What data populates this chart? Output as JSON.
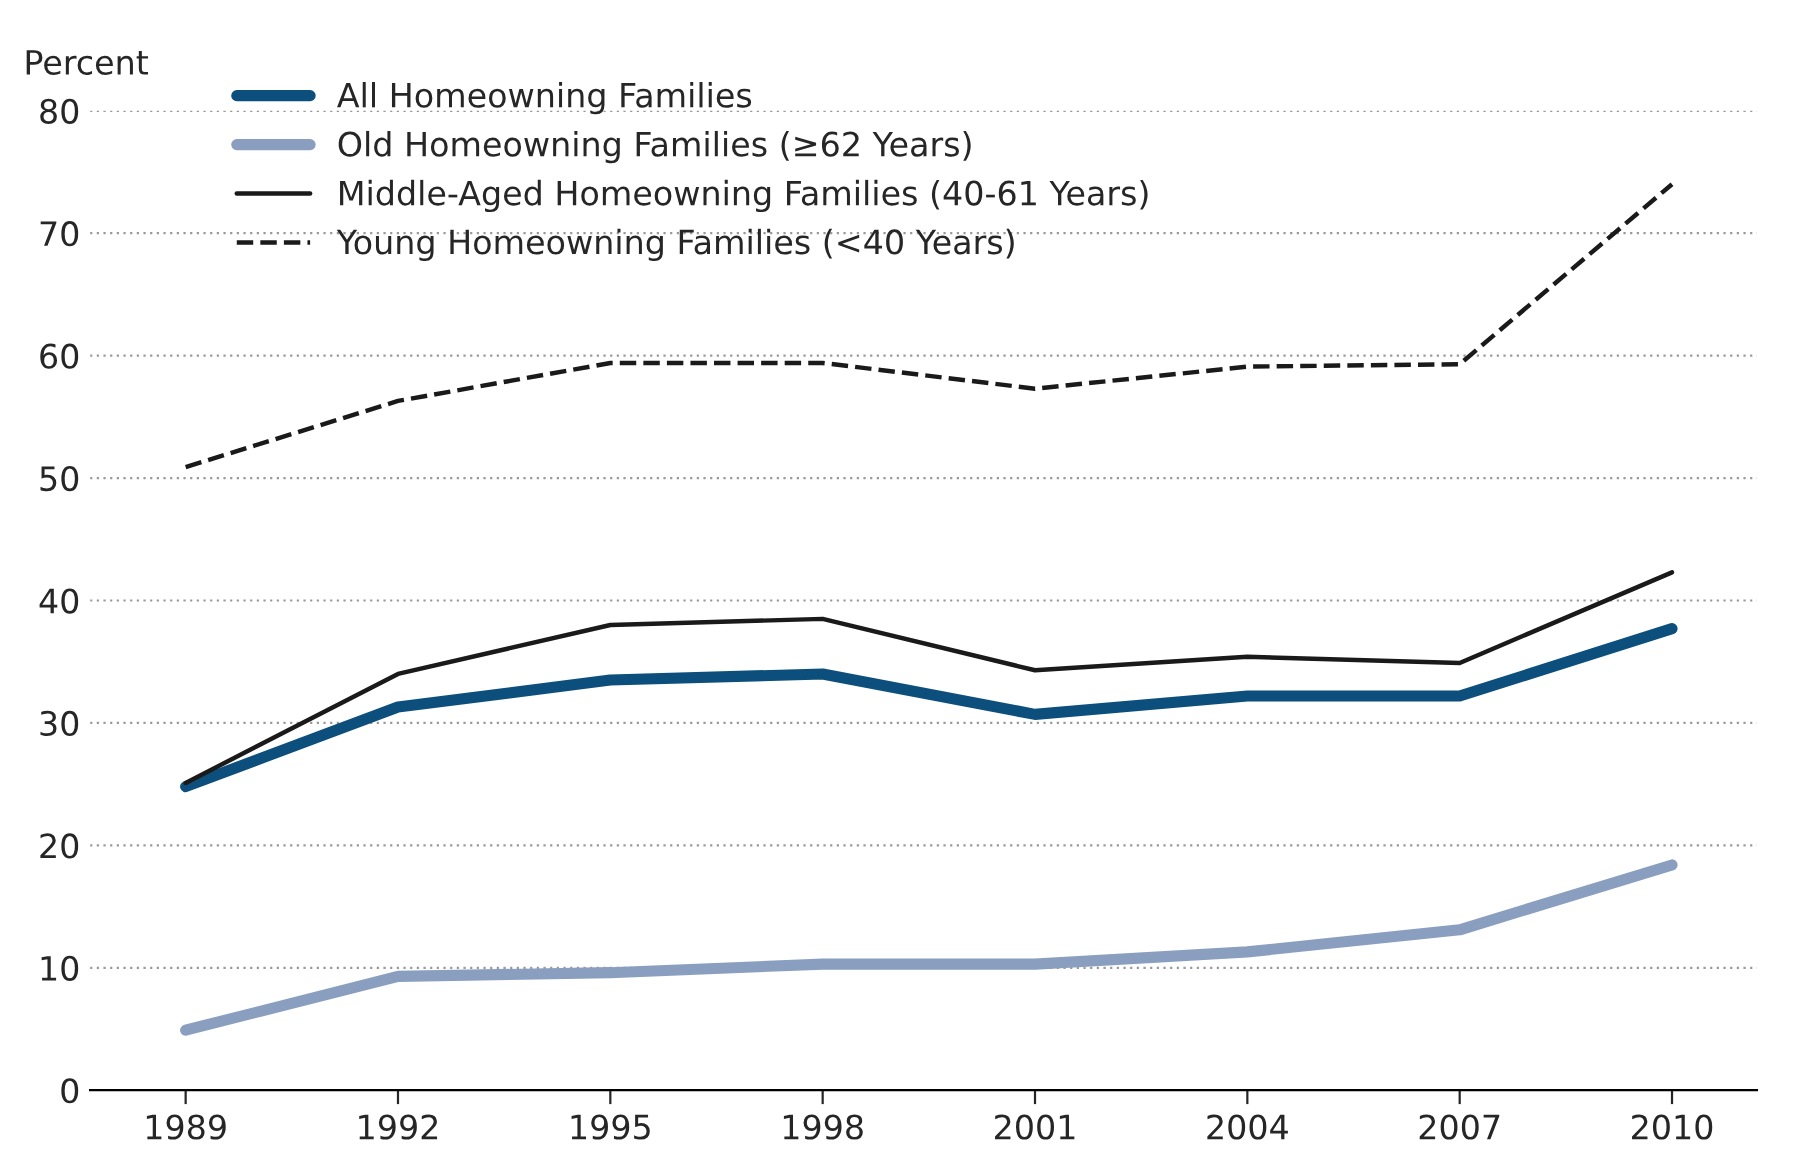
{
  "chart_data": {
    "type": "line",
    "ylabel": "Percent",
    "categories": [
      "1989",
      "1992",
      "1995",
      "1998",
      "2001",
      "2004",
      "2007",
      "2010"
    ],
    "series": [
      {
        "name": "All Homeowning Families",
        "color": "#0d4f7c",
        "values": [
          24.8,
          31.3,
          33.5,
          34.0,
          30.7,
          32.2,
          32.2,
          37.7
        ]
      },
      {
        "name": "Old Homeowning Families (≥62 Years)",
        "color": "#8a9fc0",
        "values": [
          4.9,
          9.3,
          9.6,
          10.3,
          10.3,
          11.3,
          13.1,
          18.4
        ]
      },
      {
        "name": "Middle-Aged Homeowning Families (40-61 Years)",
        "color": "#1a1a1a",
        "values": [
          25.1,
          34.0,
          38.0,
          38.5,
          34.3,
          35.4,
          34.9,
          42.3
        ]
      },
      {
        "name": "Young Homeowning Families (<40 Years)",
        "color": "#1a1a1a",
        "values": [
          50.9,
          56.3,
          59.4,
          59.4,
          57.3,
          59.1,
          59.3,
          74.0
        ],
        "line_style": "dashed"
      }
    ],
    "ylim": [
      0,
      80
    ],
    "yticks": [
      0,
      10,
      20,
      30,
      40,
      50,
      60,
      70,
      80
    ],
    "grid": "y",
    "legend": "top left",
    "marker": "none"
  }
}
